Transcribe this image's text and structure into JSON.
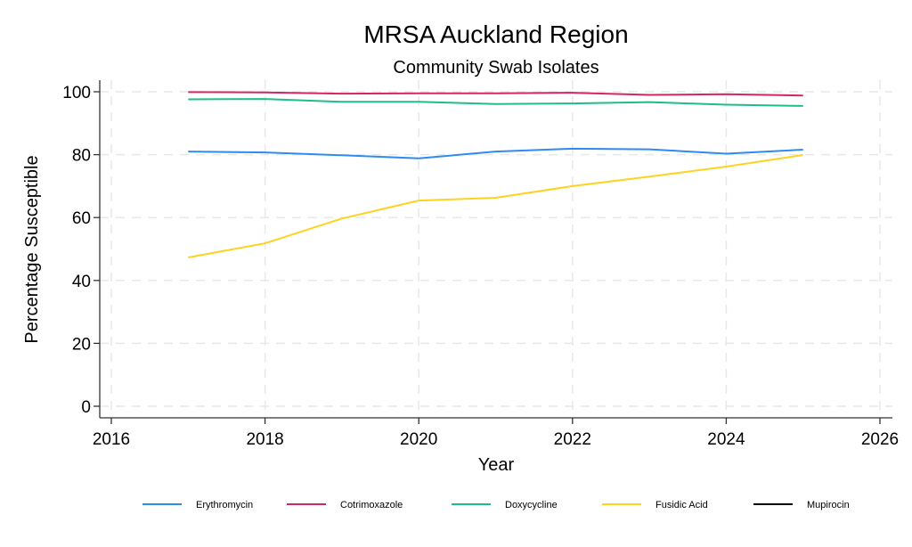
{
  "chart_data": {
    "type": "line",
    "title": "MRSA Auckland Region",
    "subtitle": "Community Swab Isolates",
    "xlabel": "Year",
    "ylabel": "Percentage Susceptible",
    "xlim": [
      2016,
      2026
    ],
    "ylim": [
      0,
      100
    ],
    "xticks": [
      2016,
      2018,
      2020,
      2022,
      2024,
      2026
    ],
    "yticks": [
      0,
      20,
      40,
      60,
      80,
      100
    ],
    "grid": true,
    "legend_position": "bottom",
    "x": [
      2017,
      2018,
      2019,
      2020,
      2021,
      2022,
      2023,
      2024,
      2025
    ],
    "series": [
      {
        "name": "Erythromycin",
        "color": "#2c8cf0",
        "values": [
          81.0,
          80.7,
          79.8,
          78.8,
          81.0,
          81.9,
          81.7,
          80.3,
          81.6
        ]
      },
      {
        "name": "Cotrimoxazole",
        "color": "#d6265f",
        "values": [
          99.9,
          99.8,
          99.4,
          99.5,
          99.5,
          99.7,
          99.0,
          99.2,
          98.8
        ]
      },
      {
        "name": "Doxycycline",
        "color": "#1dbf85",
        "values": [
          97.6,
          97.7,
          96.8,
          96.8,
          96.1,
          96.3,
          96.7,
          95.9,
          95.5
        ]
      },
      {
        "name": "Fusidic Acid",
        "color": "#ffd21f",
        "values": [
          47.3,
          51.8,
          59.7,
          65.4,
          66.3,
          70.0,
          73.0,
          76.2,
          79.9
        ]
      },
      {
        "name": "Mupirocin",
        "color": "#000000",
        "values": []
      }
    ]
  }
}
